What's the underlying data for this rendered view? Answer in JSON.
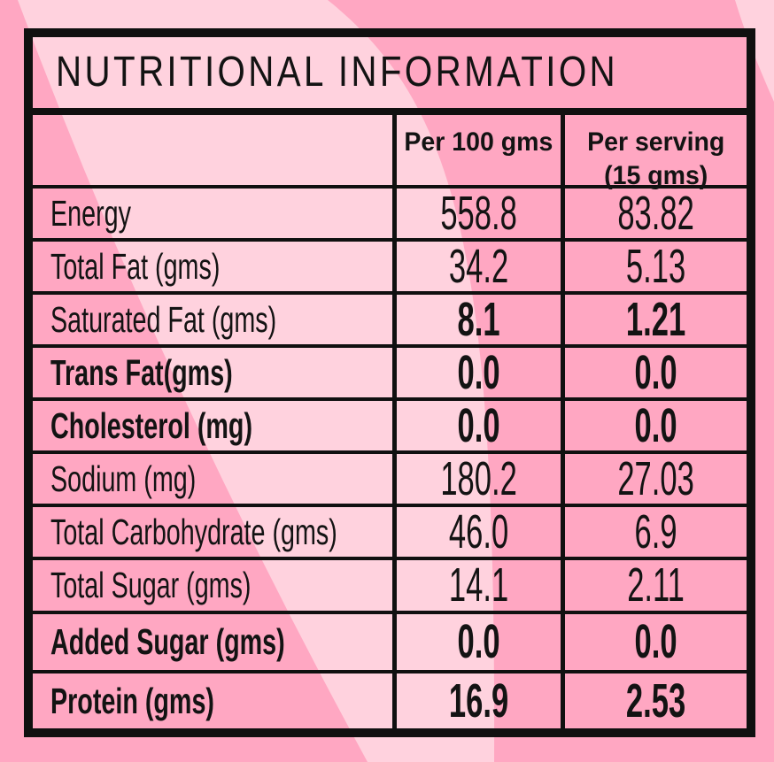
{
  "title": "NUTRITIONAL INFORMATION",
  "columns": {
    "per_100": "Per 100 gms",
    "per_serving_line1": "Per serving",
    "per_serving_line2": "(15 gms)"
  },
  "rows": [
    {
      "label": "Energy",
      "per_100": "558.8",
      "per_serving": "83.82",
      "label_bold": false,
      "values_bold": false
    },
    {
      "label": "Total Fat (gms)",
      "per_100": "34.2",
      "per_serving": "5.13",
      "label_bold": false,
      "values_bold": false
    },
    {
      "label": "Saturated Fat (gms)",
      "per_100": "8.1",
      "per_serving": "1.21",
      "label_bold": false,
      "values_bold": true
    },
    {
      "label": "Trans Fat(gms)",
      "per_100": "0.0",
      "per_serving": "0.0",
      "label_bold": true,
      "values_bold": true
    },
    {
      "label": "Cholesterol (mg)",
      "per_100": "0.0",
      "per_serving": "0.0",
      "label_bold": true,
      "values_bold": true
    },
    {
      "label": "Sodium (mg)",
      "per_100": "180.2",
      "per_serving": "27.03",
      "label_bold": false,
      "values_bold": false
    },
    {
      "label": "Total Carbohydrate (gms)",
      "per_100": "46.0",
      "per_serving": "6.9",
      "label_bold": false,
      "values_bold": false
    },
    {
      "label": "Total Sugar (gms)",
      "per_100": "14.1",
      "per_serving": "2.11",
      "label_bold": false,
      "values_bold": false
    },
    {
      "label": "Added Sugar (gms)",
      "per_100": "0.0",
      "per_serving": "0.0",
      "label_bold": true,
      "values_bold": true
    },
    {
      "label": "Protein (gms)",
      "per_100": "16.9",
      "per_serving": "2.53",
      "label_bold": true,
      "values_bold": true
    }
  ],
  "colors": {
    "background": "#ffa7c2",
    "stripe_light": "#ffd2de",
    "border": "#101010",
    "text": "#131313"
  }
}
